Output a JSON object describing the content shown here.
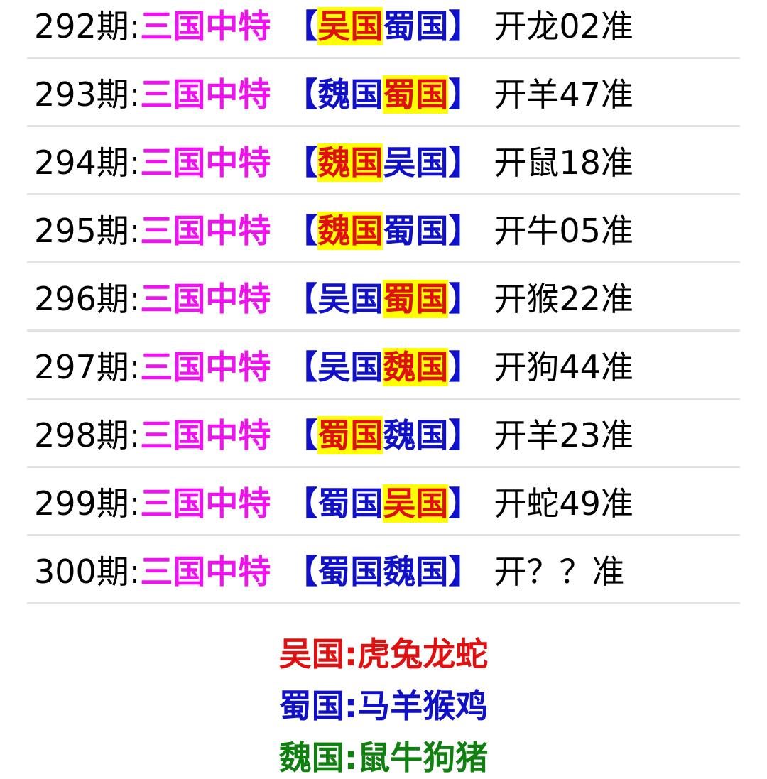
{
  "rows": [
    {
      "period": "292期:",
      "label": "三国中特",
      "open": "【",
      "a": "吴国",
      "b": "蜀国",
      "close": "】",
      "hl": 0,
      "result": "开龙02准"
    },
    {
      "period": "293期:",
      "label": "三国中特",
      "open": "【",
      "a": "魏国",
      "b": "蜀国",
      "close": "】",
      "hl": 1,
      "result": "开羊47准"
    },
    {
      "period": "294期:",
      "label": "三国中特",
      "open": "【",
      "a": "魏国",
      "b": "吴国",
      "close": "】",
      "hl": 0,
      "result": "开鼠18准"
    },
    {
      "period": "295期:",
      "label": "三国中特",
      "open": "【",
      "a": "魏国",
      "b": "蜀国",
      "close": "】",
      "hl": 0,
      "result": "开牛05准"
    },
    {
      "period": "296期:",
      "label": "三国中特",
      "open": "【",
      "a": "吴国",
      "b": "蜀国",
      "close": "】",
      "hl": 1,
      "result": "开猴22准"
    },
    {
      "period": "297期:",
      "label": "三国中特",
      "open": "【",
      "a": "吴国",
      "b": "魏国",
      "close": "】",
      "hl": 1,
      "result": "开狗44准"
    },
    {
      "period": "298期:",
      "label": "三国中特",
      "open": "【",
      "a": "蜀国",
      "b": "魏国",
      "close": "】",
      "hl": 0,
      "result": "开羊23准"
    },
    {
      "period": "299期:",
      "label": "三国中特",
      "open": "【",
      "a": "蜀国",
      "b": "吴国",
      "close": "】",
      "hl": 1,
      "result": "开蛇49准"
    },
    {
      "period": "300期:",
      "label": "三国中特",
      "open": "【",
      "a": "蜀国",
      "b": "魏国",
      "close": "】",
      "hl": -1,
      "result": "开？？准"
    }
  ],
  "legend": [
    {
      "text": "吴国:虎兔龙蛇",
      "color": "#e01010"
    },
    {
      "text": "蜀国:马羊猴鸡",
      "color": "#1010c8"
    },
    {
      "text": "魏国:鼠牛狗猪",
      "color": "#108010"
    }
  ],
  "colors": {
    "label": "#f010f0",
    "bracket": "#1010c8",
    "highlight_bg": "#ffff00",
    "highlight_text": "#e01010"
  }
}
